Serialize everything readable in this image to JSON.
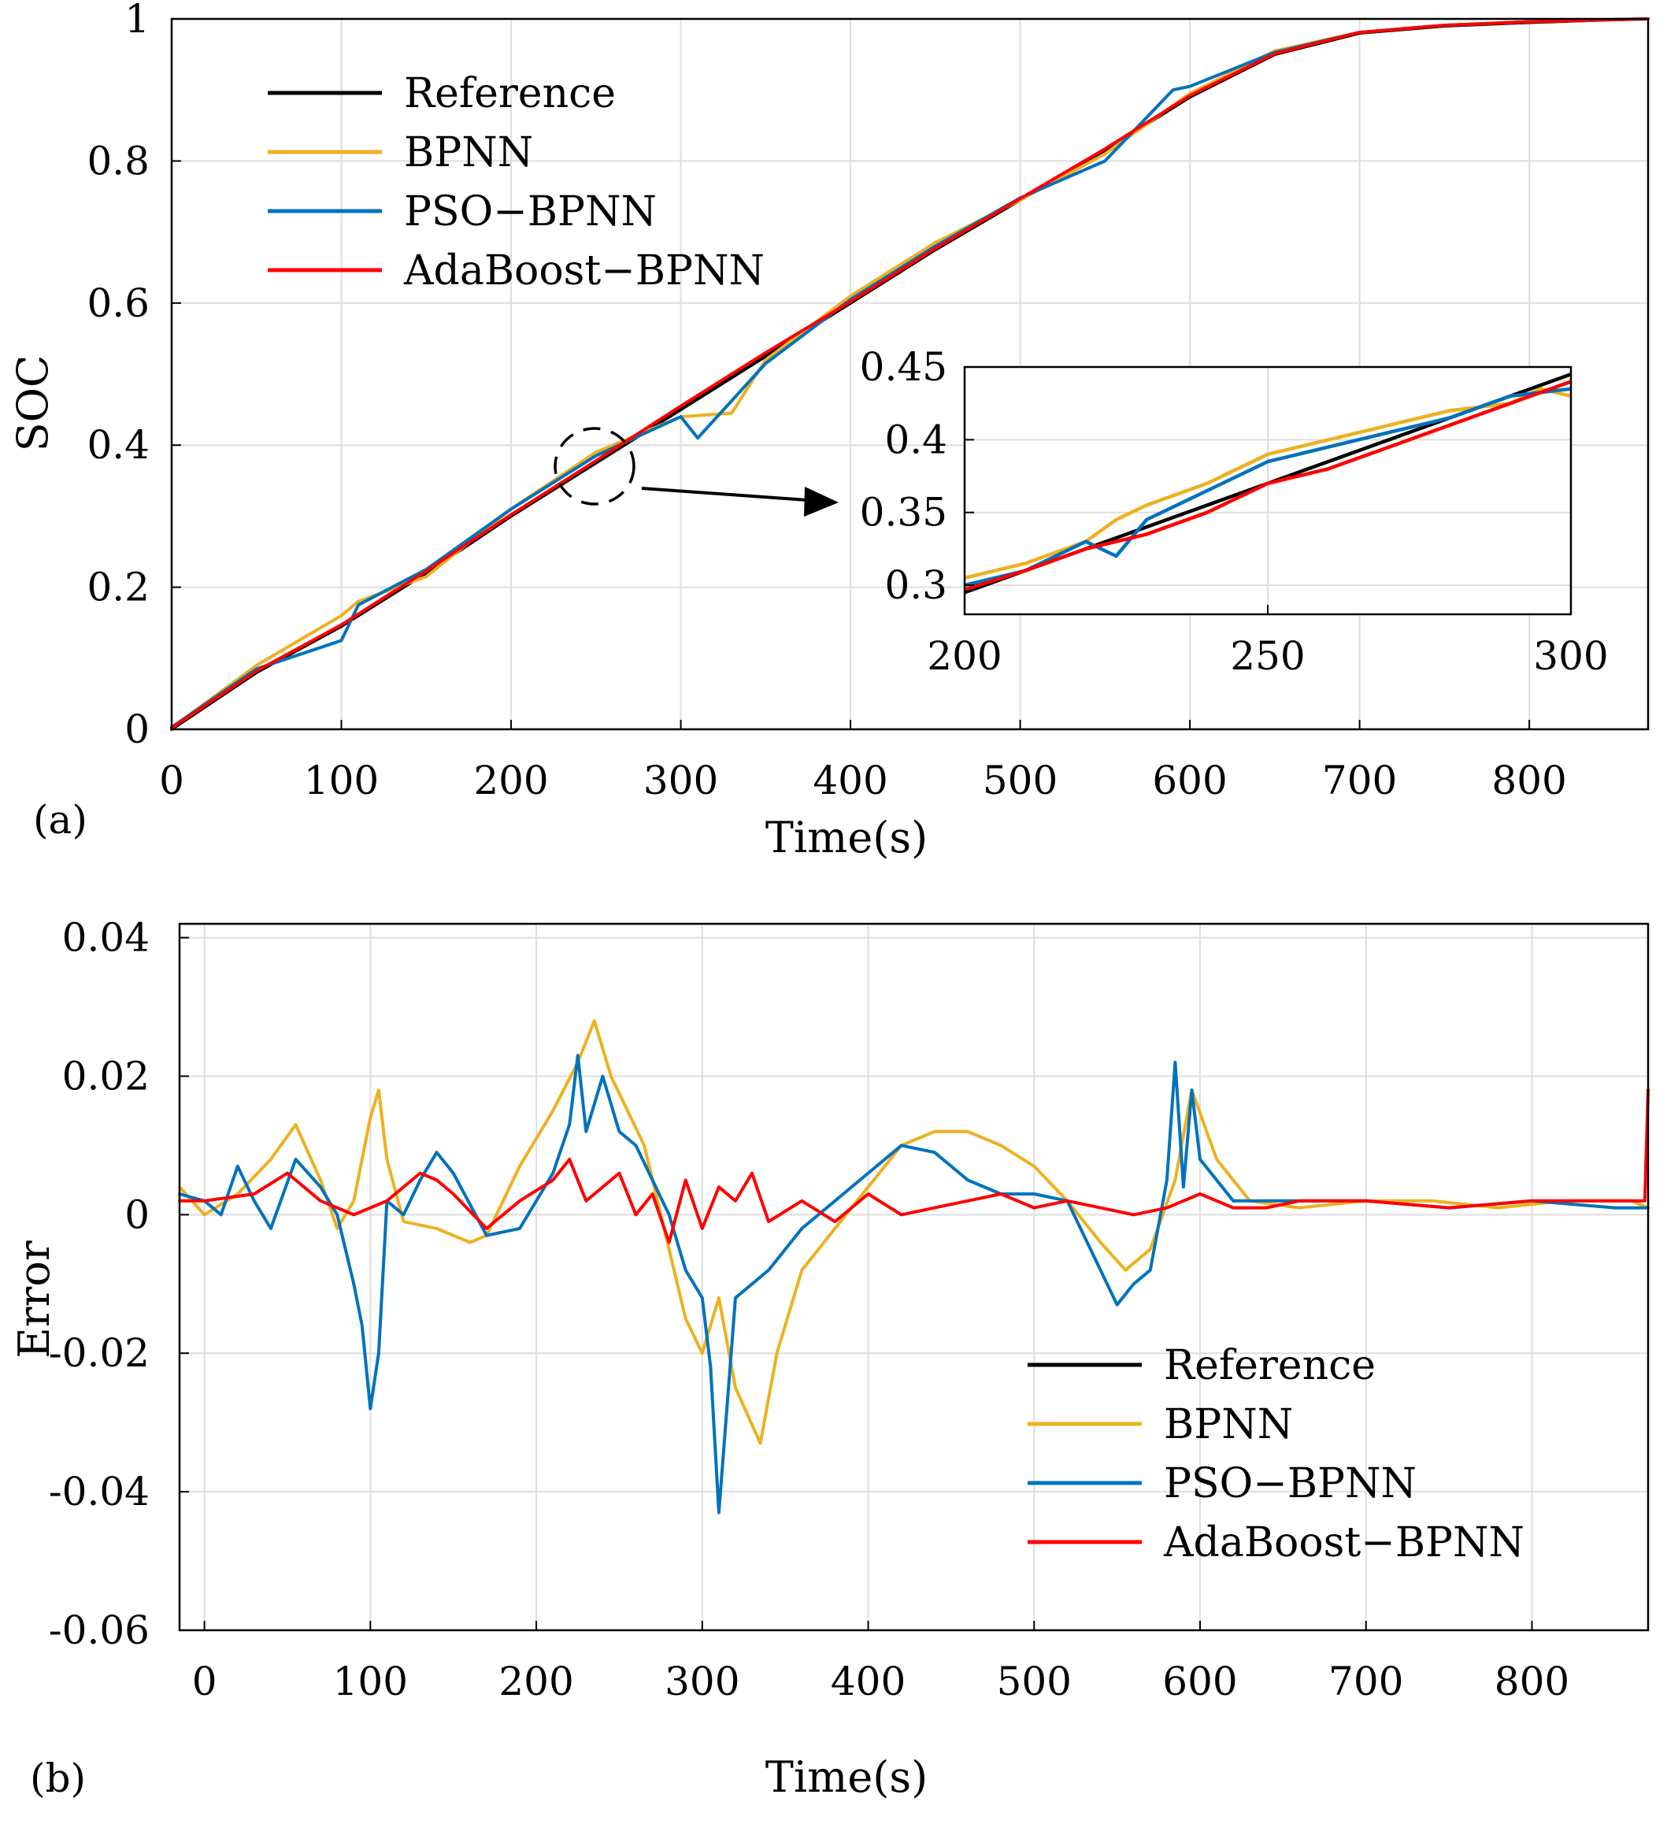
{
  "chart_data": [
    {
      "panel": "(a)",
      "type": "line",
      "xlabel": "Time(s)",
      "ylabel": "SOC",
      "xlim": [
        0,
        870
      ],
      "ylim": [
        0,
        1
      ],
      "xticks": [
        0,
        100,
        200,
        300,
        400,
        500,
        600,
        700,
        800
      ],
      "yticks": [
        0,
        0.2,
        0.4,
        0.6,
        0.8,
        1
      ],
      "ytick_labels": [
        "0",
        "0.2",
        "0.4",
        "0.6",
        "0.8",
        "1"
      ],
      "grid": true,
      "legend": {
        "placement": "top-left",
        "entries": [
          "Reference",
          "BPNN",
          "PSO−BPNN",
          "AdaBoost−BPNN"
        ]
      },
      "colors": {
        "Reference": "#000000",
        "BPNN": "#EDB120",
        "PSO−BPNN": "#0072BD",
        "AdaBoost−BPNN": "#FF0000"
      },
      "series": [
        {
          "name": "Reference",
          "x": [
            0,
            50,
            100,
            150,
            200,
            250,
            300,
            350,
            400,
            450,
            500,
            550,
            600,
            650,
            700,
            750,
            800,
            850,
            870
          ],
          "y": [
            0,
            0.08,
            0.145,
            0.22,
            0.3,
            0.375,
            0.45,
            0.525,
            0.6,
            0.675,
            0.745,
            0.815,
            0.89,
            0.95,
            0.98,
            0.99,
            0.995,
            0.999,
            1.0
          ]
        },
        {
          "name": "BPNN",
          "x": [
            0,
            50,
            100,
            110,
            150,
            200,
            250,
            300,
            330,
            350,
            400,
            450,
            500,
            550,
            600,
            650,
            700,
            750,
            800,
            850,
            870
          ],
          "y": [
            0.002,
            0.09,
            0.16,
            0.18,
            0.215,
            0.31,
            0.39,
            0.44,
            0.445,
            0.52,
            0.61,
            0.685,
            0.745,
            0.81,
            0.895,
            0.955,
            0.981,
            0.991,
            0.996,
            0.999,
            1.0
          ]
        },
        {
          "name": "PSO−BPNN",
          "x": [
            0,
            50,
            100,
            110,
            150,
            200,
            250,
            300,
            310,
            350,
            400,
            450,
            500,
            550,
            590,
            600,
            650,
            700,
            750,
            800,
            850,
            870
          ],
          "y": [
            0.003,
            0.085,
            0.125,
            0.175,
            0.225,
            0.31,
            0.385,
            0.44,
            0.41,
            0.515,
            0.605,
            0.68,
            0.748,
            0.8,
            0.9,
            0.905,
            0.953,
            0.981,
            0.991,
            0.996,
            0.999,
            1.0
          ]
        },
        {
          "name": "AdaBoost−BPNN",
          "x": [
            0,
            50,
            100,
            150,
            200,
            250,
            300,
            350,
            400,
            450,
            500,
            550,
            600,
            650,
            700,
            750,
            800,
            850,
            870
          ],
          "y": [
            0.002,
            0.082,
            0.147,
            0.223,
            0.302,
            0.378,
            0.455,
            0.53,
            0.602,
            0.677,
            0.747,
            0.817,
            0.892,
            0.951,
            0.981,
            0.991,
            0.996,
            0.999,
            1.0
          ]
        }
      ],
      "inset": {
        "xlim": [
          200,
          300
        ],
        "ylim": [
          0.28,
          0.45
        ],
        "xticks": [
          200,
          250,
          300
        ],
        "yticks": [
          0.3,
          0.35,
          0.4,
          0.45
        ],
        "ytick_labels": [
          "0.3",
          "0.35",
          "0.4",
          "0.45"
        ],
        "series": [
          {
            "name": "Reference",
            "x": [
              200,
              300
            ],
            "y": [
              0.295,
              0.445
            ]
          },
          {
            "name": "BPNN",
            "x": [
              200,
              210,
              220,
              225,
              230,
              240,
              250,
              260,
              270,
              280,
              290,
              295,
              300
            ],
            "y": [
              0.305,
              0.315,
              0.33,
              0.345,
              0.355,
              0.37,
              0.39,
              0.4,
              0.41,
              0.42,
              0.425,
              0.435,
              0.43
            ]
          },
          {
            "name": "PSO−BPNN",
            "x": [
              200,
              210,
              220,
              225,
              230,
              240,
              250,
              260,
              270,
              280,
              290,
              300
            ],
            "y": [
              0.3,
              0.31,
              0.33,
              0.32,
              0.345,
              0.365,
              0.385,
              0.395,
              0.405,
              0.415,
              0.43,
              0.435
            ]
          },
          {
            "name": "AdaBoost−BPNN",
            "x": [
              200,
              210,
              220,
              230,
              240,
              250,
              260,
              270,
              280,
              290,
              300
            ],
            "y": [
              0.297,
              0.31,
              0.325,
              0.335,
              0.35,
              0.37,
              0.38,
              0.395,
              0.41,
              0.425,
              0.44
            ]
          }
        ]
      }
    },
    {
      "panel": "(b)",
      "type": "line",
      "xlabel": "Time(s)",
      "ylabel": "Error",
      "xlim": [
        -15,
        870
      ],
      "ylim": [
        -0.06,
        0.042
      ],
      "xticks": [
        0,
        100,
        200,
        300,
        400,
        500,
        600,
        700,
        800
      ],
      "yticks": [
        -0.06,
        -0.04,
        -0.02,
        0,
        0.02,
        0.04
      ],
      "ytick_labels": [
        "-0.06",
        "-0.04",
        "-0.02",
        "0",
        "0.02",
        "0.04"
      ],
      "grid": true,
      "legend": {
        "placement": "bottom-right",
        "entries": [
          "Reference",
          "BPNN",
          "PSO−BPNN",
          "AdaBoost−BPNN"
        ]
      },
      "series": [
        {
          "name": "BPNN",
          "x": [
            -15,
            0,
            20,
            40,
            55,
            70,
            80,
            90,
            100,
            105,
            110,
            120,
            140,
            160,
            170,
            190,
            210,
            225,
            235,
            245,
            255,
            265,
            280,
            290,
            300,
            310,
            320,
            335,
            345,
            360,
            380,
            400,
            420,
            440,
            460,
            480,
            500,
            520,
            540,
            555,
            570,
            585,
            595,
            610,
            630,
            660,
            700,
            740,
            780,
            820,
            860,
            870
          ],
          "y": [
            0.004,
            0.0,
            0.003,
            0.008,
            0.013,
            0.005,
            -0.002,
            0.002,
            0.014,
            0.018,
            0.008,
            -0.001,
            -0.002,
            -0.004,
            -0.003,
            0.007,
            0.015,
            0.022,
            0.028,
            0.02,
            0.015,
            0.01,
            -0.005,
            -0.015,
            -0.02,
            -0.012,
            -0.025,
            -0.033,
            -0.02,
            -0.008,
            -0.002,
            0.004,
            0.01,
            0.012,
            0.012,
            0.01,
            0.007,
            0.002,
            -0.004,
            -0.008,
            -0.005,
            0.005,
            0.018,
            0.008,
            0.002,
            0.001,
            0.002,
            0.002,
            0.001,
            0.002,
            0.002,
            0.001
          ]
        },
        {
          "name": "PSO−BPNN",
          "x": [
            -15,
            0,
            10,
            20,
            30,
            40,
            55,
            70,
            80,
            90,
            95,
            100,
            105,
            110,
            120,
            130,
            140,
            150,
            170,
            190,
            210,
            220,
            225,
            230,
            240,
            250,
            260,
            270,
            280,
            290,
            300,
            305,
            310,
            320,
            340,
            360,
            380,
            400,
            420,
            440,
            460,
            480,
            500,
            520,
            540,
            550,
            560,
            570,
            580,
            585,
            590,
            595,
            600,
            620,
            650,
            700,
            750,
            800,
            850,
            870
          ],
          "y": [
            0.003,
            0.002,
            0.0,
            0.007,
            0.002,
            -0.002,
            0.008,
            0.004,
            0.0,
            -0.01,
            -0.016,
            -0.028,
            -0.02,
            0.002,
            0.0,
            0.005,
            0.009,
            0.006,
            -0.003,
            -0.002,
            0.006,
            0.013,
            0.023,
            0.012,
            0.02,
            0.012,
            0.01,
            0.005,
            0.0,
            -0.008,
            -0.012,
            -0.022,
            -0.043,
            -0.012,
            -0.008,
            -0.002,
            0.002,
            0.006,
            0.01,
            0.009,
            0.005,
            0.003,
            0.003,
            0.002,
            -0.008,
            -0.013,
            -0.01,
            -0.008,
            0.005,
            0.022,
            0.004,
            0.018,
            0.008,
            0.002,
            0.002,
            0.002,
            0.001,
            0.002,
            0.001,
            0.001
          ]
        },
        {
          "name": "AdaBoost−BPNN",
          "x": [
            -15,
            0,
            30,
            50,
            70,
            90,
            110,
            130,
            140,
            150,
            170,
            190,
            210,
            220,
            230,
            240,
            250,
            260,
            270,
            280,
            290,
            300,
            310,
            320,
            330,
            340,
            360,
            380,
            400,
            420,
            440,
            460,
            480,
            500,
            520,
            540,
            560,
            580,
            600,
            620,
            640,
            660,
            700,
            750,
            800,
            850,
            868,
            870
          ],
          "y": [
            0.002,
            0.002,
            0.003,
            0.006,
            0.002,
            0.0,
            0.002,
            0.006,
            0.005,
            0.003,
            -0.002,
            0.002,
            0.005,
            0.008,
            0.002,
            0.004,
            0.006,
            0.0,
            0.003,
            -0.004,
            0.005,
            -0.002,
            0.004,
            0.002,
            0.006,
            -0.001,
            0.002,
            -0.001,
            0.003,
            0.0,
            0.001,
            0.002,
            0.003,
            0.001,
            0.002,
            0.001,
            0.0,
            0.001,
            0.003,
            0.001,
            0.001,
            0.002,
            0.002,
            0.001,
            0.002,
            0.002,
            0.002,
            0.018
          ]
        }
      ]
    }
  ]
}
